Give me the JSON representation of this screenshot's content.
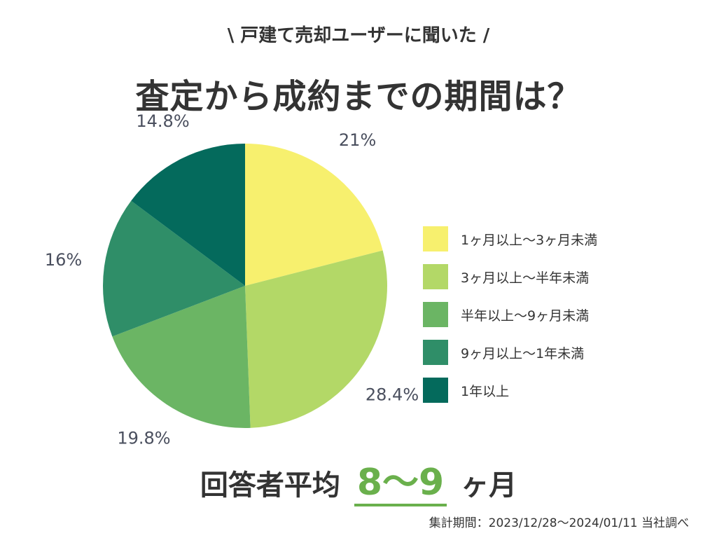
{
  "header": {
    "subtitle": "\\ 戸建て売却ユーザーに聞いた /",
    "title": "査定から成約までの期間は？"
  },
  "chart_data": {
    "type": "pie",
    "title": "査定から成約までの期間は？",
    "categories": [
      "1ヶ月以上〜3ヶ月未満",
      "3ヶ月以上〜半年未満",
      "半年以上〜9ヶ月未満",
      "9ヶ月以上〜1年未満",
      "1年以上"
    ],
    "values": [
      21,
      28.4,
      19.8,
      16,
      14.8
    ],
    "labels": [
      "21%",
      "28.4%",
      "19.8%",
      "16%",
      "14.8%"
    ],
    "colors": [
      "#f7f06e",
      "#b3d867",
      "#6bb564",
      "#2f8e68",
      "#046a5c"
    ],
    "legend_position": "right"
  },
  "summary": {
    "prefix": "回答者平均",
    "value": "8〜9",
    "suffix": "ヶ月"
  },
  "footnote": "集計期間：2023/12/28〜2024/01/11 当社調べ"
}
